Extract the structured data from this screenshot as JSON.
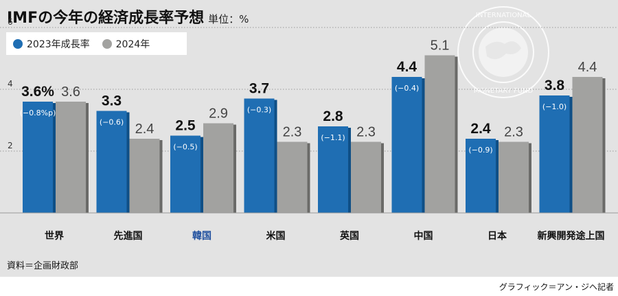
{
  "title": "IMFの今年の経済成長率予想",
  "unit": "単位：%",
  "legend": [
    {
      "label": "2023年成長率",
      "color": "#1f6eb3"
    },
    {
      "label": "2024年",
      "color": "#a2a2a0"
    }
  ],
  "source": "資料＝企画財政部",
  "credit": "グラフィック＝アン・ジヘ記者",
  "chart_data": {
    "type": "bar",
    "categories": [
      "世界",
      "先進国",
      "韓国",
      "米国",
      "英国",
      "中国",
      "日本",
      "新興開発途上国"
    ],
    "highlight_category": "韓国",
    "series": [
      {
        "name": "2023年成長率",
        "color": "#1f6eb3",
        "values": [
          3.6,
          3.3,
          2.5,
          3.7,
          2.8,
          4.4,
          2.4,
          3.8
        ],
        "labels": [
          "3.6%",
          "3.3",
          "2.5",
          "3.7",
          "2.8",
          "4.4",
          "2.4",
          "3.8"
        ],
        "changes": [
          "(−0.8%p)",
          "(−0.6)",
          "(−0.5)",
          "(−0.3)",
          "(−1.1)",
          "(−0.4)",
          "(−0.9)",
          "(−1.0)"
        ]
      },
      {
        "name": "2024年",
        "color": "#a2a2a0",
        "values": [
          3.6,
          2.4,
          2.9,
          2.3,
          2.3,
          5.1,
          2.3,
          4.4
        ],
        "labels": [
          "3.6",
          "2.4",
          "2.9",
          "2.3",
          "2.3",
          "5.1",
          "2.3",
          "4.4"
        ]
      }
    ],
    "yticks": [
      2,
      4,
      6
    ],
    "ylim": [
      0,
      7
    ],
    "grid": "dotted horizontal",
    "legend_position": "top-left"
  }
}
